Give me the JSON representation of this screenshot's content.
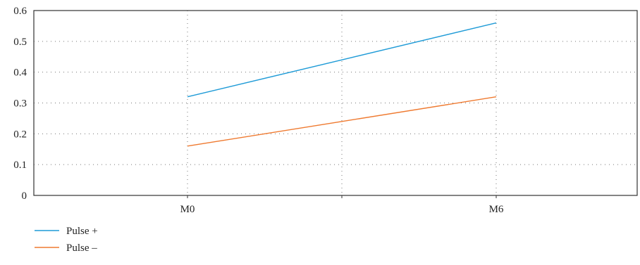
{
  "chart_data": {
    "type": "line",
    "categories": [
      "M0",
      "",
      "M6"
    ],
    "series": [
      {
        "name": "Pulse +",
        "values": [
          0.32,
          0.44,
          0.56
        ],
        "color": "#1f9bd7"
      },
      {
        "name": "Pulse –",
        "values": [
          0.16,
          0.24,
          0.32
        ],
        "color": "#ef7a30"
      }
    ],
    "y_ticks": [
      "0",
      "0.1",
      "0.2",
      "0.3",
      "0.4",
      "0.5",
      "0.6"
    ],
    "ylim": [
      0,
      0.6
    ],
    "grid": "dotted",
    "legend": "bottom-left"
  }
}
